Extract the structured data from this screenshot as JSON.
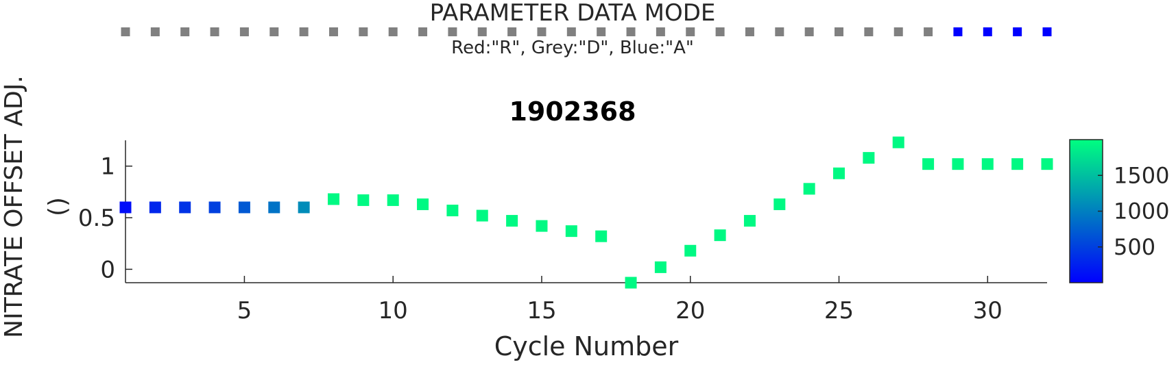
{
  "mode_strip": {
    "title": "PARAMETER DATA MODE",
    "legend": "Red:\"R\", Grey:\"D\", Blue:\"A\"",
    "modes": [
      "D",
      "D",
      "D",
      "D",
      "D",
      "D",
      "D",
      "D",
      "D",
      "D",
      "D",
      "D",
      "D",
      "D",
      "D",
      "D",
      "D",
      "D",
      "D",
      "D",
      "D",
      "D",
      "D",
      "D",
      "D",
      "D",
      "D",
      "D",
      "A",
      "A",
      "A",
      "A"
    ],
    "colors": {
      "R": "#ff0000",
      "D": "#808080",
      "A": "#0000ff"
    }
  },
  "chart_data": {
    "type": "scatter",
    "title": "1902368",
    "xlabel": "Cycle Number",
    "ylabel": [
      "NITRATE OFFSET ADJ.",
      "()"
    ],
    "xlim": [
      1,
      32
    ],
    "ylim": [
      -0.13,
      1.25
    ],
    "xticks": [
      5,
      10,
      15,
      20,
      25,
      30
    ],
    "yticks": [
      0,
      0.5,
      1
    ],
    "ytick_labels": [
      "0",
      "0.5",
      "1"
    ],
    "x": [
      1,
      2,
      3,
      4,
      5,
      6,
      7,
      8,
      9,
      10,
      11,
      12,
      13,
      14,
      15,
      16,
      17,
      18,
      19,
      20,
      21,
      22,
      23,
      24,
      25,
      26,
      27,
      28,
      29,
      30,
      31,
      32
    ],
    "y": [
      0.6,
      0.6,
      0.6,
      0.6,
      0.6,
      0.6,
      0.6,
      0.68,
      0.67,
      0.67,
      0.63,
      0.57,
      0.52,
      0.47,
      0.42,
      0.37,
      0.32,
      -0.13,
      0.02,
      0.18,
      0.33,
      0.47,
      0.63,
      0.78,
      0.93,
      1.08,
      1.23,
      1.02,
      1.02,
      1.02,
      1.02,
      1.02
    ],
    "color_values": [
      100,
      300,
      400,
      500,
      700,
      900,
      1100,
      1950,
      1950,
      1950,
      1950,
      1950,
      1950,
      1950,
      1950,
      1950,
      1950,
      1950,
      1950,
      1950,
      1950,
      1950,
      1950,
      1950,
      1950,
      1950,
      1950,
      1950,
      1950,
      1950,
      1950,
      1950
    ],
    "colorbar": {
      "ticks": [
        500,
        1000,
        1500
      ],
      "clim": [
        0,
        2000
      ],
      "colors": [
        "#0000ff",
        "#00ff80"
      ]
    },
    "grid": false,
    "legend": "none"
  }
}
